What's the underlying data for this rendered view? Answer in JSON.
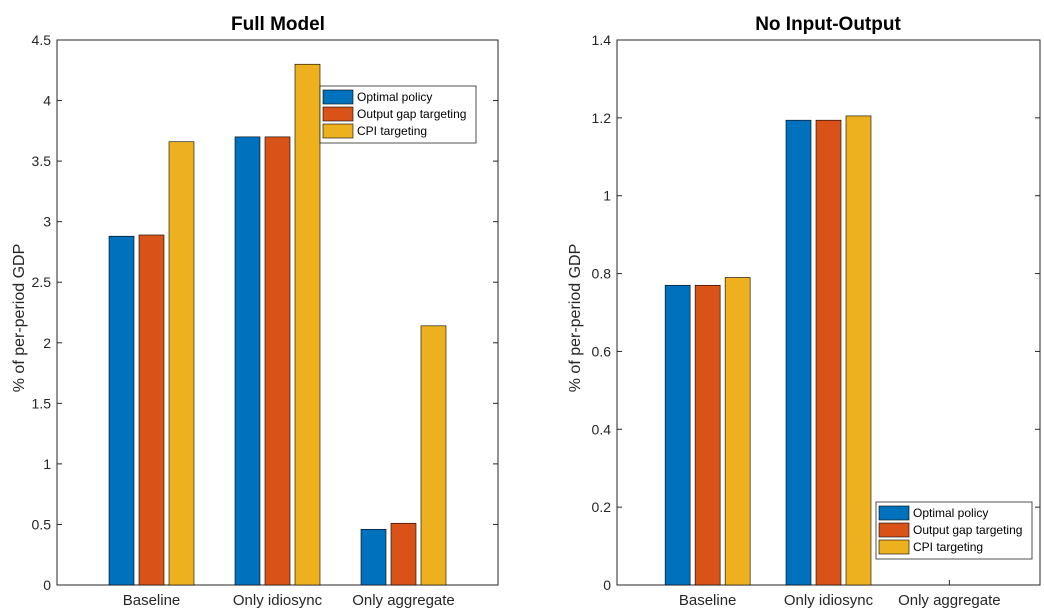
{
  "chart_data": [
    {
      "type": "bar",
      "title": "Full Model",
      "ylabel": "% of per-period GDP",
      "xlabel": "",
      "ylim": [
        0,
        4.5
      ],
      "yticks": [
        "0",
        "0.5",
        "1",
        "1.5",
        "2",
        "2.5",
        "3",
        "3.5",
        "4",
        "4.5"
      ],
      "categories": [
        "Baseline",
        "Only idiosync",
        "Only aggregate"
      ],
      "series": [
        {
          "name": "Optimal policy",
          "values": [
            2.88,
            3.7,
            0.46
          ]
        },
        {
          "name": "Output gap targeting",
          "values": [
            2.89,
            3.7,
            0.51
          ]
        },
        {
          "name": "CPI targeting",
          "values": [
            3.66,
            4.3,
            2.14
          ]
        }
      ],
      "legend": "top-right",
      "grid": false
    },
    {
      "type": "bar",
      "title": "No Input-Output",
      "ylabel": "% of per-period GDP",
      "xlabel": "",
      "ylim": [
        0,
        1.4
      ],
      "yticks": [
        "0",
        "0.2",
        "0.4",
        "0.6",
        "0.8",
        "1",
        "1.2",
        "1.4"
      ],
      "categories": [
        "Baseline",
        "Only idiosync",
        "Only aggregate"
      ],
      "series": [
        {
          "name": "Optimal policy",
          "values": [
            0.77,
            1.194,
            0
          ]
        },
        {
          "name": "Output gap targeting",
          "values": [
            0.77,
            1.194,
            0
          ]
        },
        {
          "name": "CPI targeting",
          "values": [
            0.79,
            1.205,
            0
          ]
        }
      ],
      "legend": "bottom-right",
      "grid": false
    }
  ],
  "colors": {
    "series": [
      "#0072BD",
      "#D95319",
      "#EDB120"
    ],
    "axis": "#262626"
  }
}
